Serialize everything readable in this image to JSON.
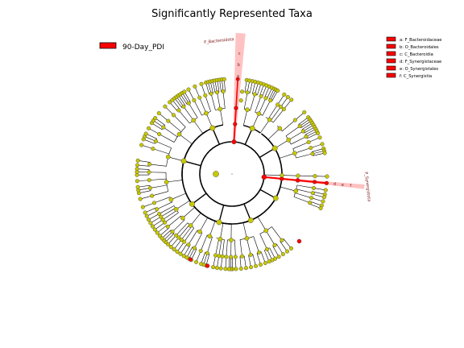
{
  "chart_data": {
    "type": "cladogram",
    "title": "Significantly Represented Taxa",
    "legend_group": {
      "label": "90-Day_PDI",
      "color": "#ff0000"
    },
    "legend_taxa": [
      {
        "key": "a",
        "label": "a: F_Bacteroidaceae"
      },
      {
        "key": "b",
        "label": "b: O_Bacteroidales"
      },
      {
        "key": "c",
        "label": "c: C_Bacteroidia"
      },
      {
        "key": "d",
        "label": "d: F_Synergistaceae"
      },
      {
        "key": "e",
        "label": "e: O_Synergistales"
      },
      {
        "key": "f",
        "label": "f: C_Synergistia"
      }
    ],
    "highlighted_clades": [
      {
        "name": "P_Bacteroidota",
        "letters": [
          "c",
          "b",
          "a"
        ],
        "direction": "up"
      },
      {
        "name": "P_Synergistota",
        "letters": [
          "f",
          "e",
          "d"
        ],
        "direction": "right"
      }
    ],
    "colors": {
      "enriched": "#ff0000",
      "non_significant": "#c8c800",
      "clade_shade": "#ff9090",
      "label_text": "#7a1010"
    }
  }
}
